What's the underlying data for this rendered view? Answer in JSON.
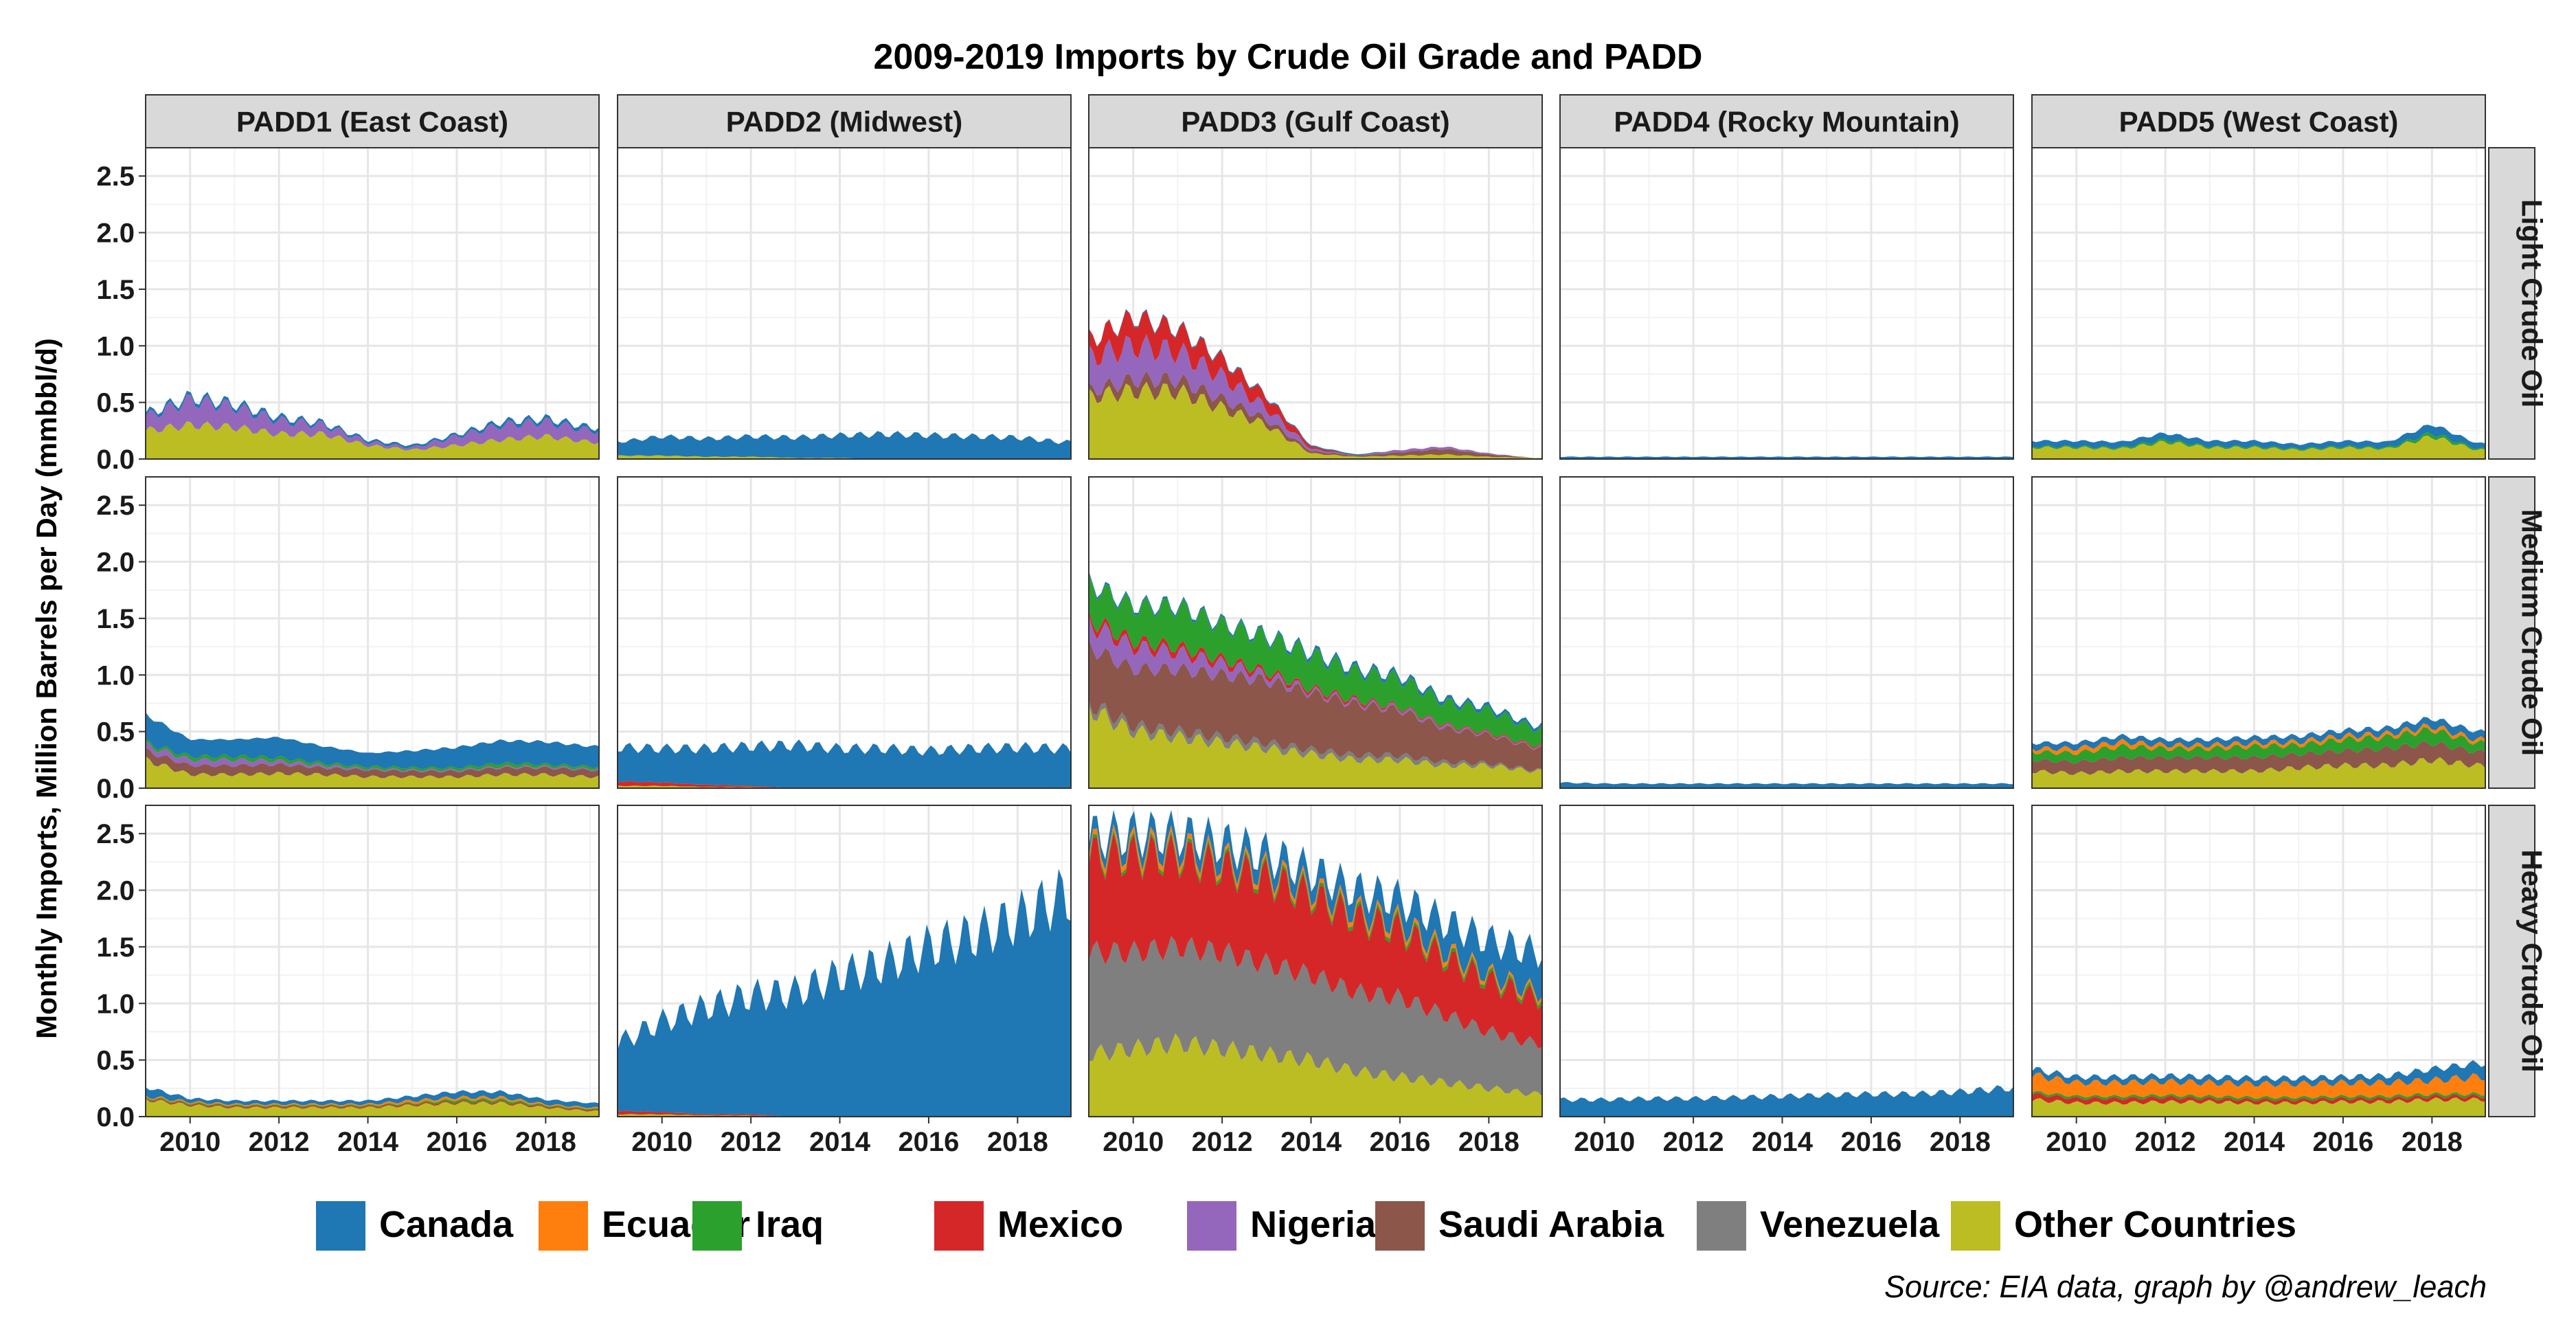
{
  "chart_data": {
    "type": "area",
    "title": "2009-2019 Imports by Crude Oil Grade and PADD",
    "ylabel": "Monthly Imports, Million Barrels per Day (mmbbl/d)",
    "xlabel": "",
    "source": "Source: EIA data, graph by @andrew_leach",
    "xlim": [
      2009.0,
      2019.2
    ],
    "ylim": [
      0,
      2.75
    ],
    "x_ticks": [
      "2010",
      "2012",
      "2014",
      "2016",
      "2018"
    ],
    "y_ticks": [
      "0.0",
      "0.5",
      "1.0",
      "1.5",
      "2.0",
      "2.5"
    ],
    "x_tick_values": [
      2010,
      2012,
      2014,
      2016,
      2018
    ],
    "y_tick_values": [
      0,
      0.5,
      1.0,
      1.5,
      2.0,
      2.5
    ],
    "grid": true,
    "legend_position": "bottom",
    "columns": [
      "PADD1 (East Coast)",
      "PADD2 (Midwest)",
      "PADD3 (Gulf Coast)",
      "PADD4 (Rocky Mountain)",
      "PADD5 (West Coast)"
    ],
    "rows": [
      "Light Crude Oil",
      "Medium Crude Oil",
      "Heavy Crude Oil"
    ],
    "x": [
      2009.0,
      2010.0,
      2011.0,
      2012.0,
      2013.0,
      2014.0,
      2015.0,
      2016.0,
      2017.0,
      2018.0,
      2019.0
    ],
    "stack_order": [
      "Other Countries",
      "Venezuela",
      "Saudi Arabia",
      "Nigeria",
      "Mexico",
      "Iraq",
      "Ecuador",
      "Canada"
    ],
    "series": [
      {
        "name": "Canada",
        "color": "#1f77b4"
      },
      {
        "name": "Ecuador",
        "color": "#ff7f0e"
      },
      {
        "name": "Iraq",
        "color": "#2ca02c"
      },
      {
        "name": "Mexico",
        "color": "#d62728"
      },
      {
        "name": "Nigeria",
        "color": "#9467bd"
      },
      {
        "name": "Saudi Arabia",
        "color": "#8c564b"
      },
      {
        "name": "Venezuela",
        "color": "#7f7f7f"
      },
      {
        "name": "Other Countries",
        "color": "#bcbd22"
      }
    ],
    "panels": [
      {
        "col": 0,
        "row": 0,
        "values": {
          "Canada": [
            0.03,
            0.03,
            0.03,
            0.03,
            0.02,
            0.02,
            0.02,
            0.02,
            0.03,
            0.03,
            0.03
          ],
          "Nigeria": [
            0.12,
            0.22,
            0.18,
            0.12,
            0.08,
            0.03,
            0.02,
            0.08,
            0.13,
            0.13,
            0.1
          ],
          "Other Countries": [
            0.25,
            0.3,
            0.28,
            0.22,
            0.22,
            0.12,
            0.08,
            0.12,
            0.17,
            0.2,
            0.15
          ]
        }
      },
      {
        "col": 1,
        "row": 0,
        "values": {
          "Canada": [
            0.12,
            0.17,
            0.16,
            0.18,
            0.18,
            0.2,
            0.22,
            0.21,
            0.2,
            0.19,
            0.15
          ],
          "Other Countries": [
            0.03,
            0.03,
            0.02,
            0.02,
            0.01,
            0.01,
            0.0,
            0.0,
            0.0,
            0.0,
            0.0
          ]
        }
      },
      {
        "col": 2,
        "row": 0,
        "values": {
          "Canada": [
            0.0,
            0.01,
            0.01,
            0.01,
            0.01,
            0.01,
            0.01,
            0.0,
            0.0,
            0.0,
            0.0
          ],
          "Mexico": [
            0.15,
            0.25,
            0.2,
            0.15,
            0.1,
            0.02,
            0.0,
            0.0,
            0.0,
            0.0,
            0.0
          ],
          "Nigeria": [
            0.3,
            0.3,
            0.25,
            0.2,
            0.1,
            0.02,
            0.0,
            0.02,
            0.02,
            0.01,
            0.0
          ],
          "Saudi Arabia": [
            0.05,
            0.1,
            0.1,
            0.08,
            0.05,
            0.02,
            0.01,
            0.03,
            0.05,
            0.02,
            0.0
          ],
          "Other Countries": [
            0.55,
            0.6,
            0.6,
            0.45,
            0.3,
            0.05,
            0.02,
            0.03,
            0.04,
            0.02,
            0.01
          ]
        }
      },
      {
        "col": 3,
        "row": 0,
        "values": {
          "Canada": [
            0.02,
            0.02,
            0.02,
            0.02,
            0.02,
            0.02,
            0.02,
            0.02,
            0.02,
            0.02,
            0.02
          ]
        }
      },
      {
        "col": 4,
        "row": 0,
        "values": {
          "Canada": [
            0.05,
            0.05,
            0.05,
            0.06,
            0.05,
            0.05,
            0.04,
            0.05,
            0.05,
            0.08,
            0.05
          ],
          "Iraq": [
            0.01,
            0.01,
            0.01,
            0.02,
            0.01,
            0.01,
            0.01,
            0.01,
            0.01,
            0.03,
            0.01
          ],
          "Other Countries": [
            0.1,
            0.1,
            0.09,
            0.15,
            0.1,
            0.1,
            0.08,
            0.1,
            0.09,
            0.2,
            0.08
          ]
        }
      },
      {
        "col": 0,
        "row": 1,
        "values": {
          "Canada": [
            0.25,
            0.15,
            0.15,
            0.18,
            0.15,
            0.12,
            0.15,
            0.18,
            0.2,
            0.2,
            0.18
          ],
          "Iraq": [
            0.02,
            0.03,
            0.03,
            0.03,
            0.02,
            0.02,
            0.02,
            0.02,
            0.03,
            0.02,
            0.02
          ],
          "Nigeria": [
            0.05,
            0.05,
            0.05,
            0.03,
            0.02,
            0.01,
            0.01,
            0.01,
            0.01,
            0.01,
            0.01
          ],
          "Saudi Arabia": [
            0.08,
            0.08,
            0.08,
            0.08,
            0.06,
            0.06,
            0.05,
            0.05,
            0.06,
            0.06,
            0.06
          ],
          "Other Countries": [
            0.25,
            0.12,
            0.12,
            0.13,
            0.12,
            0.1,
            0.1,
            0.1,
            0.12,
            0.12,
            0.1
          ]
        }
      },
      {
        "col": 1,
        "row": 1,
        "values": {
          "Canada": [
            0.3,
            0.3,
            0.32,
            0.35,
            0.38,
            0.35,
            0.35,
            0.33,
            0.35,
            0.36,
            0.35
          ],
          "Mexico": [
            0.04,
            0.03,
            0.02,
            0.01,
            0.0,
            0.0,
            0.0,
            0.0,
            0.0,
            0.0,
            0.0
          ],
          "Other Countries": [
            0.02,
            0.02,
            0.01,
            0.01,
            0.0,
            0.0,
            0.0,
            0.0,
            0.0,
            0.0,
            0.0
          ]
        }
      },
      {
        "col": 2,
        "row": 1,
        "values": {
          "Canada": [
            0.02,
            0.02,
            0.02,
            0.02,
            0.02,
            0.03,
            0.03,
            0.03,
            0.03,
            0.03,
            0.03
          ],
          "Iraq": [
            0.3,
            0.3,
            0.35,
            0.3,
            0.3,
            0.3,
            0.25,
            0.25,
            0.2,
            0.2,
            0.15
          ],
          "Mexico": [
            0.05,
            0.05,
            0.05,
            0.04,
            0.03,
            0.02,
            0.02,
            0.01,
            0.01,
            0.01,
            0.01
          ],
          "Nigeria": [
            0.2,
            0.2,
            0.15,
            0.1,
            0.05,
            0.02,
            0.02,
            0.02,
            0.02,
            0.01,
            0.01
          ],
          "Saudi Arabia": [
            0.5,
            0.5,
            0.55,
            0.55,
            0.55,
            0.5,
            0.45,
            0.4,
            0.3,
            0.25,
            0.2
          ],
          "Venezuela": [
            0.05,
            0.05,
            0.05,
            0.05,
            0.05,
            0.04,
            0.04,
            0.04,
            0.03,
            0.02,
            0.01
          ],
          "Other Countries": [
            0.7,
            0.5,
            0.45,
            0.4,
            0.35,
            0.3,
            0.25,
            0.25,
            0.2,
            0.2,
            0.15
          ]
        }
      },
      {
        "col": 3,
        "row": 1,
        "values": {
          "Canada": [
            0.05,
            0.04,
            0.04,
            0.04,
            0.04,
            0.04,
            0.04,
            0.04,
            0.04,
            0.04,
            0.04
          ]
        }
      },
      {
        "col": 4,
        "row": 1,
        "values": {
          "Canada": [
            0.05,
            0.05,
            0.05,
            0.05,
            0.05,
            0.05,
            0.05,
            0.05,
            0.05,
            0.07,
            0.07
          ],
          "Ecuador": [
            0.03,
            0.04,
            0.04,
            0.03,
            0.03,
            0.03,
            0.03,
            0.03,
            0.03,
            0.03,
            0.03
          ],
          "Iraq": [
            0.07,
            0.08,
            0.1,
            0.08,
            0.08,
            0.1,
            0.08,
            0.1,
            0.1,
            0.12,
            0.08
          ],
          "Saudi Arabia": [
            0.1,
            0.1,
            0.12,
            0.12,
            0.12,
            0.12,
            0.12,
            0.13,
            0.15,
            0.15,
            0.12
          ],
          "Other Countries": [
            0.15,
            0.13,
            0.15,
            0.15,
            0.15,
            0.15,
            0.18,
            0.2,
            0.2,
            0.25,
            0.2
          ]
        }
      },
      {
        "col": 0,
        "row": 2,
        "values": {
          "Canada": [
            0.08,
            0.03,
            0.03,
            0.03,
            0.03,
            0.03,
            0.04,
            0.05,
            0.05,
            0.04,
            0.04
          ],
          "Ecuador": [
            0.01,
            0.01,
            0.01,
            0.01,
            0.01,
            0.01,
            0.02,
            0.02,
            0.02,
            0.01,
            0.01
          ],
          "Iraq": [
            0.01,
            0.01,
            0.01,
            0.01,
            0.01,
            0.01,
            0.01,
            0.02,
            0.02,
            0.01,
            0.01
          ],
          "Mexico": [
            0.01,
            0.01,
            0.01,
            0.01,
            0.01,
            0.01,
            0.01,
            0.01,
            0.01,
            0.01,
            0.01
          ],
          "Other Countries": [
            0.15,
            0.1,
            0.08,
            0.08,
            0.08,
            0.08,
            0.1,
            0.12,
            0.12,
            0.08,
            0.05
          ]
        }
      },
      {
        "col": 1,
        "row": 2,
        "values": {
          "Canada": [
            0.6,
            0.8,
            0.95,
            1.05,
            1.1,
            1.25,
            1.35,
            1.5,
            1.6,
            1.75,
            1.95
          ],
          "Mexico": [
            0.03,
            0.02,
            0.01,
            0.01,
            0.0,
            0.0,
            0.0,
            0.0,
            0.0,
            0.0,
            0.0
          ],
          "Other Countries": [
            0.02,
            0.02,
            0.01,
            0.01,
            0.0,
            0.0,
            0.0,
            0.0,
            0.0,
            0.0,
            0.0
          ]
        }
      },
      {
        "col": 2,
        "row": 2,
        "values": {
          "Canada": [
            0.1,
            0.12,
            0.12,
            0.15,
            0.15,
            0.15,
            0.18,
            0.2,
            0.25,
            0.3,
            0.35
          ],
          "Ecuador": [
            0.05,
            0.05,
            0.05,
            0.04,
            0.04,
            0.04,
            0.04,
            0.04,
            0.04,
            0.03,
            0.03
          ],
          "Iraq": [
            0.03,
            0.03,
            0.03,
            0.03,
            0.03,
            0.03,
            0.03,
            0.03,
            0.03,
            0.03,
            0.03
          ],
          "Mexico": [
            0.85,
            0.85,
            0.8,
            0.75,
            0.75,
            0.7,
            0.65,
            0.6,
            0.5,
            0.45,
            0.4
          ],
          "Venezuela": [
            0.9,
            0.85,
            0.85,
            0.85,
            0.8,
            0.75,
            0.7,
            0.7,
            0.6,
            0.5,
            0.45
          ],
          "Other Countries": [
            0.55,
            0.6,
            0.65,
            0.6,
            0.55,
            0.5,
            0.4,
            0.35,
            0.3,
            0.25,
            0.2
          ]
        }
      },
      {
        "col": 3,
        "row": 2,
        "values": {
          "Canada": [
            0.15,
            0.15,
            0.16,
            0.16,
            0.17,
            0.18,
            0.19,
            0.2,
            0.2,
            0.22,
            0.25
          ]
        }
      },
      {
        "col": 4,
        "row": 2,
        "values": {
          "Canada": [
            0.05,
            0.05,
            0.05,
            0.05,
            0.05,
            0.05,
            0.05,
            0.05,
            0.06,
            0.1,
            0.12
          ],
          "Ecuador": [
            0.15,
            0.12,
            0.12,
            0.12,
            0.12,
            0.12,
            0.12,
            0.12,
            0.12,
            0.12,
            0.15
          ],
          "Iraq": [
            0.02,
            0.02,
            0.02,
            0.02,
            0.02,
            0.02,
            0.02,
            0.02,
            0.02,
            0.02,
            0.02
          ],
          "Mexico": [
            0.05,
            0.04,
            0.04,
            0.04,
            0.03,
            0.03,
            0.03,
            0.03,
            0.03,
            0.03,
            0.03
          ],
          "Other Countries": [
            0.15,
            0.12,
            0.12,
            0.13,
            0.13,
            0.12,
            0.12,
            0.13,
            0.13,
            0.15,
            0.15
          ]
        }
      }
    ]
  }
}
